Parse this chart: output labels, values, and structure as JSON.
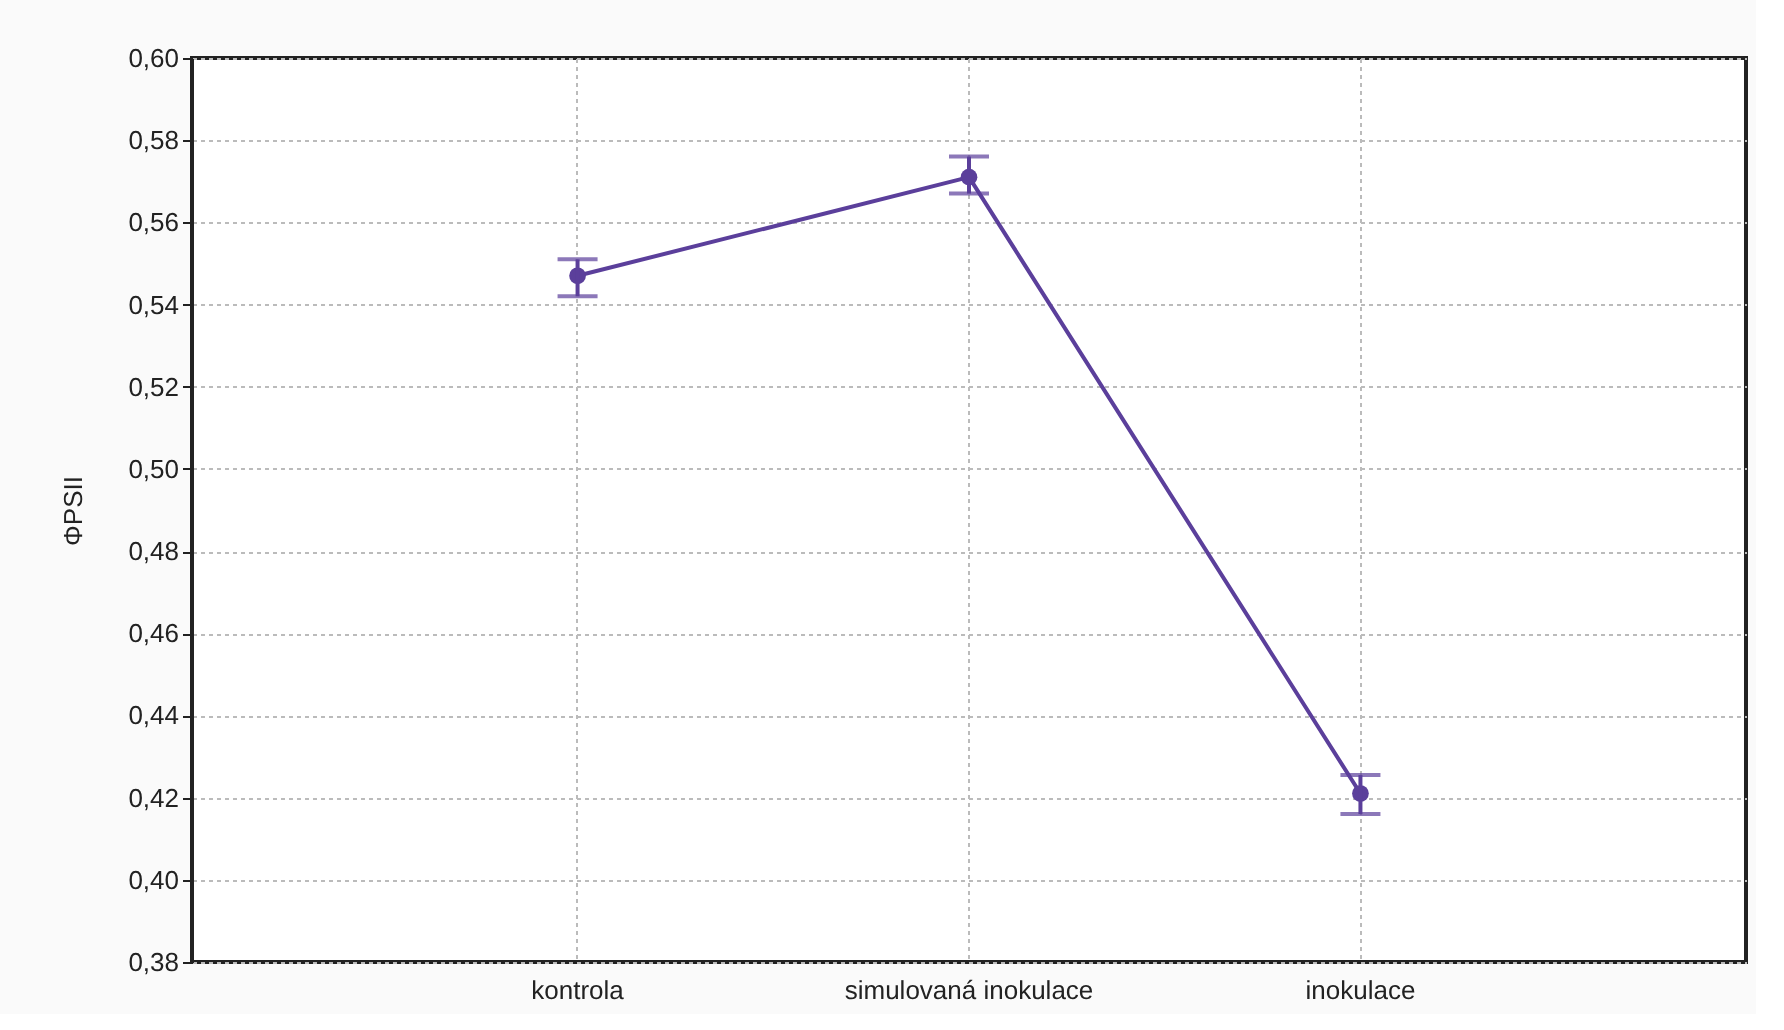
{
  "chart_data": {
    "type": "line",
    "ylabel": "ΦPSII",
    "categories": [
      "kontrola",
      "simulovaná inokulace",
      "inokulace"
    ],
    "series": [
      {
        "color": "#5b3f9b",
        "values": [
          0.547,
          0.571,
          0.421
        ],
        "errors": [
          [
            0.542,
            0.551
          ],
          [
            0.567,
            0.576
          ],
          [
            0.416,
            0.4255
          ]
        ]
      }
    ],
    "ylim": [
      0.38,
      0.6
    ],
    "yticks": [
      {
        "value": 0.38,
        "label": "0,38"
      },
      {
        "value": 0.4,
        "label": "0,40"
      },
      {
        "value": 0.42,
        "label": "0,42"
      },
      {
        "value": 0.44,
        "label": "0,44"
      },
      {
        "value": 0.46,
        "label": "0,46"
      },
      {
        "value": 0.48,
        "label": "0,48"
      },
      {
        "value": 0.5,
        "label": "0,50"
      },
      {
        "value": 0.52,
        "label": "0,52"
      },
      {
        "value": 0.54,
        "label": "0,54"
      },
      {
        "value": 0.56,
        "label": "0,56"
      },
      {
        "value": 0.58,
        "label": "0,58"
      },
      {
        "value": 0.6,
        "label": "0,60"
      }
    ],
    "grid": true,
    "marker": "circle",
    "line_style": "solid"
  }
}
